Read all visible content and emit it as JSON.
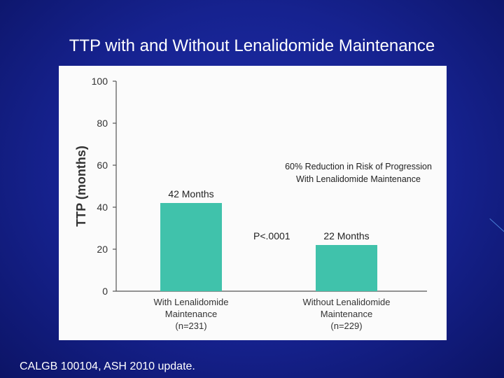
{
  "slide": {
    "title": "TTP with and Without Lenalidomide Maintenance",
    "footer": "CALGB 100104, ASH 2010 update."
  },
  "colors": {
    "background": "#16228f",
    "bar": "#40c2ab",
    "axis_text": "#333333"
  },
  "chart_data": {
    "type": "bar",
    "categories": [
      [
        "With Lenalidomide",
        "Maintenance",
        "(n=231)"
      ],
      [
        "Without Lenalidomide",
        "Maintenance",
        "(n=229)"
      ]
    ],
    "values": [
      42,
      22
    ],
    "data_labels": [
      "42 Months",
      "22 Months"
    ],
    "ylabel": "TTP (months)",
    "ylim": [
      0,
      100
    ],
    "yticks": [
      0,
      20,
      40,
      60,
      80,
      100
    ],
    "annotations": {
      "reduction": [
        "60% Reduction in Risk of Progression",
        "With Lenalidomide Maintenance"
      ],
      "p_value": "P<.0001"
    },
    "grid": false
  }
}
